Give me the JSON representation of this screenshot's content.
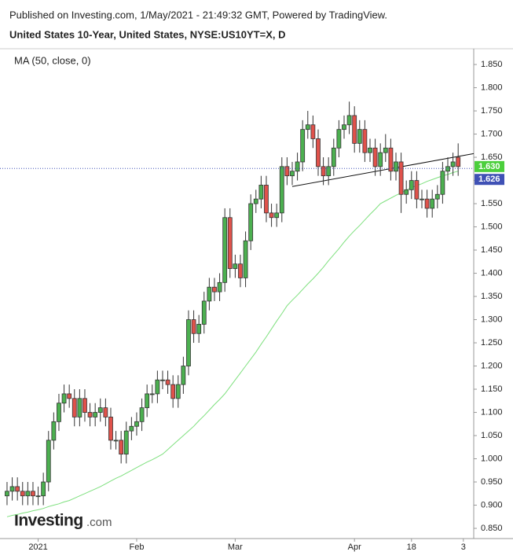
{
  "chart_data": {
    "type": "candlestick",
    "header": "Published on Investing.com, 1/May/2021 - 21:49:32 GMT, Powered by TradingView.",
    "title": "United States 10-Year, United States, NYSE:US10YT=X, D",
    "logo": {
      "main": "Investing",
      "suffix": ".com"
    },
    "up_color": "#4cb050",
    "down_color": "#e0524b",
    "open": [
      0.92,
      0.93,
      0.94,
      0.93,
      0.92,
      0.93,
      0.92,
      0.92,
      0.95,
      1.04,
      1.08,
      1.12,
      1.14,
      1.13,
      1.09,
      1.13,
      1.1,
      1.09,
      1.1,
      1.11,
      1.09,
      1.04,
      1.04,
      1.01,
      1.06,
      1.07,
      1.08,
      1.11,
      1.14,
      1.14,
      1.17,
      1.17,
      1.16,
      1.13,
      1.16,
      1.2,
      1.3,
      1.27,
      1.29,
      1.34,
      1.37,
      1.36,
      1.38,
      1.52,
      1.41,
      1.42,
      1.39,
      1.47,
      1.55,
      1.56,
      1.59,
      1.53,
      1.52,
      1.53,
      1.63,
      1.61,
      1.62,
      1.64,
      1.71,
      1.72,
      1.69,
      1.63,
      1.61,
      1.63,
      1.67,
      1.71,
      1.72,
      1.74,
      1.68,
      1.71,
      1.66,
      1.67,
      1.63,
      1.66,
      1.67,
      1.62,
      1.64,
      1.57,
      1.58,
      1.6,
      1.56,
      1.56,
      1.54,
      1.56,
      1.57,
      1.62,
      1.63,
      1.65
    ],
    "high": [
      0.95,
      0.96,
      0.96,
      0.95,
      0.95,
      0.95,
      0.94,
      0.97,
      1.06,
      1.1,
      1.14,
      1.16,
      1.16,
      1.15,
      1.15,
      1.15,
      1.12,
      1.12,
      1.13,
      1.13,
      1.11,
      1.06,
      1.06,
      1.08,
      1.09,
      1.1,
      1.13,
      1.16,
      1.16,
      1.19,
      1.19,
      1.19,
      1.18,
      1.18,
      1.22,
      1.32,
      1.32,
      1.31,
      1.36,
      1.39,
      1.39,
      1.4,
      1.54,
      1.54,
      1.44,
      1.44,
      1.49,
      1.57,
      1.58,
      1.61,
      1.61,
      1.55,
      1.55,
      1.65,
      1.65,
      1.64,
      1.66,
      1.73,
      1.75,
      1.74,
      1.71,
      1.65,
      1.65,
      1.69,
      1.73,
      1.74,
      1.77,
      1.76,
      1.73,
      1.73,
      1.69,
      1.69,
      1.68,
      1.7,
      1.69,
      1.66,
      1.66,
      1.6,
      1.62,
      1.62,
      1.58,
      1.58,
      1.58,
      1.59,
      1.64,
      1.65,
      1.66,
      1.68
    ],
    "low": [
      0.9,
      0.91,
      0.91,
      0.9,
      0.9,
      0.9,
      0.9,
      0.9,
      0.93,
      1.02,
      1.06,
      1.1,
      1.11,
      1.07,
      1.07,
      1.08,
      1.07,
      1.07,
      1.08,
      1.07,
      1.02,
      1.02,
      0.99,
      0.99,
      1.04,
      1.05,
      1.06,
      1.09,
      1.12,
      1.12,
      1.15,
      1.14,
      1.11,
      1.11,
      1.14,
      1.18,
      1.25,
      1.25,
      1.27,
      1.32,
      1.34,
      1.34,
      1.36,
      1.39,
      1.39,
      1.37,
      1.37,
      1.45,
      1.53,
      1.54,
      1.51,
      1.5,
      1.5,
      1.51,
      1.59,
      1.59,
      1.6,
      1.62,
      1.69,
      1.67,
      1.61,
      1.59,
      1.59,
      1.61,
      1.65,
      1.69,
      1.7,
      1.66,
      1.66,
      1.64,
      1.64,
      1.61,
      1.61,
      1.64,
      1.6,
      1.6,
      1.53,
      1.55,
      1.56,
      1.54,
      1.54,
      1.52,
      1.52,
      1.54,
      1.55,
      1.6,
      1.61,
      1.61
    ],
    "close": [
      0.93,
      0.94,
      0.93,
      0.92,
      0.93,
      0.92,
      0.92,
      0.95,
      1.04,
      1.08,
      1.12,
      1.14,
      1.13,
      1.09,
      1.13,
      1.1,
      1.09,
      1.1,
      1.11,
      1.09,
      1.04,
      1.04,
      1.01,
      1.06,
      1.07,
      1.08,
      1.11,
      1.14,
      1.14,
      1.17,
      1.17,
      1.16,
      1.13,
      1.16,
      1.2,
      1.3,
      1.27,
      1.29,
      1.34,
      1.37,
      1.36,
      1.38,
      1.52,
      1.41,
      1.42,
      1.39,
      1.47,
      1.55,
      1.56,
      1.59,
      1.53,
      1.52,
      1.53,
      1.63,
      1.61,
      1.62,
      1.64,
      1.71,
      1.72,
      1.69,
      1.63,
      1.61,
      1.63,
      1.67,
      1.71,
      1.72,
      1.74,
      1.68,
      1.71,
      1.66,
      1.67,
      1.63,
      1.66,
      1.67,
      1.62,
      1.64,
      1.57,
      1.58,
      1.6,
      1.56,
      1.56,
      1.54,
      1.56,
      1.57,
      1.62,
      1.63,
      1.64,
      1.63
    ],
    "series": [
      {
        "name": "MA (50, close, 0)",
        "color": "#7ee07e",
        "values": [
          0.875,
          0.878,
          0.88,
          0.883,
          0.885,
          0.888,
          0.89,
          0.893,
          0.897,
          0.9,
          0.903,
          0.907,
          0.91,
          0.915,
          0.92,
          0.925,
          0.93,
          0.935,
          0.94,
          0.946,
          0.952,
          0.958,
          0.963,
          0.969,
          0.975,
          0.981,
          0.987,
          0.993,
          0.998,
          1.004,
          1.01,
          1.02,
          1.03,
          1.04,
          1.05,
          1.06,
          1.07,
          1.082,
          1.093,
          1.105,
          1.117,
          1.128,
          1.14,
          1.155,
          1.17,
          1.185,
          1.2,
          1.215,
          1.23,
          1.247,
          1.263,
          1.28,
          1.297,
          1.313,
          1.33,
          1.342,
          1.353,
          1.365,
          1.377,
          1.388,
          1.4,
          1.413,
          1.427,
          1.44,
          1.453,
          1.467,
          1.48,
          1.492,
          1.503,
          1.515,
          1.527,
          1.538,
          1.55,
          1.556,
          1.562,
          1.568,
          1.573,
          1.579,
          1.585,
          1.589,
          1.593,
          1.598,
          1.602,
          1.606,
          1.61,
          1.613,
          1.617,
          1.62
        ]
      }
    ],
    "trendline": {
      "x": [
        55,
        90
      ],
      "y": [
        1.587,
        1.658
      ]
    },
    "price_labels": [
      {
        "value": 1.63,
        "label": "1.630",
        "color": "#4ccf3c"
      },
      {
        "value": 1.626,
        "label": "1.626",
        "color": "#3f51b5"
      }
    ],
    "xlim": [
      -0.6,
      90
    ],
    "xticks": [
      {
        "value": 6,
        "label": "2021"
      },
      {
        "value": 25,
        "label": "Feb"
      },
      {
        "value": 44,
        "label": "Mar"
      },
      {
        "value": 67,
        "label": "Apr"
      },
      {
        "value": 78,
        "label": "18"
      },
      {
        "value": 88,
        "label": "3"
      }
    ],
    "ylim": [
      0.828,
      1.884
    ],
    "yticks": [
      {
        "value": 0.85,
        "label": "0.850"
      },
      {
        "value": 0.9,
        "label": "0.900"
      },
      {
        "value": 0.95,
        "label": "0.950"
      },
      {
        "value": 1.0,
        "label": "1.000"
      },
      {
        "value": 1.05,
        "label": "1.050"
      },
      {
        "value": 1.1,
        "label": "1.100"
      },
      {
        "value": 1.15,
        "label": "1.150"
      },
      {
        "value": 1.2,
        "label": "1.200"
      },
      {
        "value": 1.25,
        "label": "1.250"
      },
      {
        "value": 1.3,
        "label": "1.300"
      },
      {
        "value": 1.35,
        "label": "1.350"
      },
      {
        "value": 1.4,
        "label": "1.400"
      },
      {
        "value": 1.45,
        "label": "1.450"
      },
      {
        "value": 1.5,
        "label": "1.500"
      },
      {
        "value": 1.55,
        "label": "1.550"
      },
      {
        "value": 1.6,
        "label": "1.600"
      },
      {
        "value": 1.65,
        "label": "1.650"
      },
      {
        "value": 1.7,
        "label": "1.700"
      },
      {
        "value": 1.75,
        "label": "1.750"
      },
      {
        "value": 1.8,
        "label": "1.800"
      },
      {
        "value": 1.85,
        "label": "1.850"
      }
    ]
  }
}
